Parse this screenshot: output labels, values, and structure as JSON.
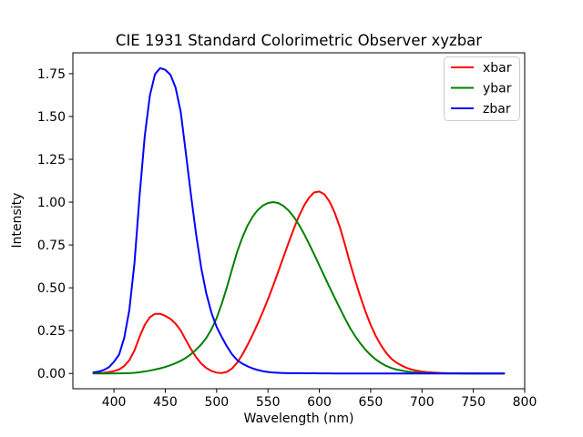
{
  "figure": {
    "background": "#ffffff",
    "axes_color": "#000000",
    "legend_border_color": "#cccccc",
    "legend_background": "#ffffff"
  },
  "chart_data": {
    "type": "line",
    "title": "CIE 1931 Standard Colorimetric Observer xyzbar",
    "xlabel": "Wavelength (nm)",
    "ylabel": "Intensity",
    "xlim": [
      360,
      800
    ],
    "ylim": [
      -0.0891,
      1.8717
    ],
    "grid": false,
    "xticks": {
      "values": [
        400,
        450,
        500,
        550,
        600,
        650,
        700,
        750,
        800
      ],
      "labels": [
        "400",
        "450",
        "500",
        "550",
        "600",
        "650",
        "700",
        "750",
        "800"
      ]
    },
    "yticks": {
      "values": [
        0.0,
        0.25,
        0.5,
        0.75,
        1.0,
        1.25,
        1.5,
        1.75
      ],
      "labels": [
        "0.00",
        "0.25",
        "0.50",
        "0.75",
        "1.00",
        "1.25",
        "1.50",
        "1.75"
      ]
    },
    "legend": {
      "position": "upper right",
      "entries": [
        {
          "label": "xbar",
          "color": "#ff0000"
        },
        {
          "label": "ybar",
          "color": "#008000"
        },
        {
          "label": "zbar",
          "color": "#0000ff"
        }
      ]
    },
    "x": [
      380,
      385,
      390,
      395,
      400,
      405,
      410,
      415,
      420,
      425,
      430,
      435,
      440,
      445,
      450,
      455,
      460,
      465,
      470,
      475,
      480,
      485,
      490,
      495,
      500,
      505,
      510,
      515,
      520,
      525,
      530,
      535,
      540,
      545,
      550,
      555,
      560,
      565,
      570,
      575,
      580,
      585,
      590,
      595,
      600,
      605,
      610,
      615,
      620,
      625,
      630,
      635,
      640,
      645,
      650,
      655,
      660,
      665,
      670,
      675,
      680,
      685,
      690,
      695,
      700,
      705,
      710,
      715,
      720,
      725,
      730,
      735,
      740,
      745,
      750,
      755,
      760,
      765,
      770,
      775,
      780
    ],
    "series": [
      {
        "name": "xbar",
        "color": "#ff0000",
        "values": [
          0.0014,
          0.0022,
          0.0042,
          0.0076,
          0.0143,
          0.0232,
          0.0435,
          0.0776,
          0.1344,
          0.2148,
          0.2839,
          0.3285,
          0.3483,
          0.3481,
          0.3362,
          0.3187,
          0.2908,
          0.2511,
          0.1954,
          0.1421,
          0.0956,
          0.058,
          0.032,
          0.0147,
          0.0049,
          0.0024,
          0.0093,
          0.0291,
          0.0633,
          0.1096,
          0.1655,
          0.2257,
          0.2904,
          0.3597,
          0.4334,
          0.5121,
          0.5945,
          0.6784,
          0.7621,
          0.8425,
          0.9163,
          0.9786,
          1.0263,
          1.0567,
          1.0622,
          1.0456,
          1.0026,
          0.9384,
          0.8544,
          0.7514,
          0.6424,
          0.5419,
          0.4479,
          0.3608,
          0.2835,
          0.2187,
          0.1649,
          0.1212,
          0.0874,
          0.0636,
          0.0468,
          0.0329,
          0.0227,
          0.0158,
          0.0114,
          0.0081,
          0.0058,
          0.0041,
          0.0029,
          0.002,
          0.0014,
          0.001,
          0.0007,
          0.0005,
          0.0003,
          0.0002,
          0.0002,
          0.0001,
          0.0001,
          0.0001,
          0.0
        ]
      },
      {
        "name": "ybar",
        "color": "#008000",
        "values": [
          0.0,
          0.0001,
          0.0001,
          0.0002,
          0.0004,
          0.0006,
          0.0012,
          0.0022,
          0.004,
          0.0073,
          0.0116,
          0.0168,
          0.023,
          0.0298,
          0.038,
          0.048,
          0.06,
          0.0739,
          0.091,
          0.1126,
          0.139,
          0.1693,
          0.208,
          0.2586,
          0.323,
          0.4073,
          0.503,
          0.6082,
          0.71,
          0.7932,
          0.862,
          0.9149,
          0.954,
          0.9803,
          0.995,
          1.0,
          0.995,
          0.9786,
          0.952,
          0.9154,
          0.87,
          0.8163,
          0.757,
          0.6949,
          0.631,
          0.5668,
          0.503,
          0.4412,
          0.381,
          0.321,
          0.265,
          0.217,
          0.175,
          0.1382,
          0.107,
          0.0816,
          0.061,
          0.0446,
          0.032,
          0.0232,
          0.017,
          0.0119,
          0.0082,
          0.0057,
          0.0041,
          0.0029,
          0.0021,
          0.0015,
          0.001,
          0.0007,
          0.0005,
          0.0004,
          0.0002,
          0.0002,
          0.0001,
          0.0001,
          0.0001,
          0.0,
          0.0,
          0.0,
          0.0
        ]
      },
      {
        "name": "zbar",
        "color": "#0000ff",
        "values": [
          0.0065,
          0.0105,
          0.0201,
          0.0362,
          0.0679,
          0.1102,
          0.2074,
          0.3713,
          0.6456,
          1.0391,
          1.3856,
          1.623,
          1.7471,
          1.7826,
          1.7721,
          1.7441,
          1.6692,
          1.5281,
          1.2876,
          1.0419,
          0.813,
          0.6162,
          0.4652,
          0.3533,
          0.272,
          0.2123,
          0.1582,
          0.1117,
          0.0782,
          0.0573,
          0.0422,
          0.0298,
          0.0203,
          0.0134,
          0.0087,
          0.0057,
          0.0039,
          0.0027,
          0.0021,
          0.0018,
          0.0017,
          0.0014,
          0.0011,
          0.001,
          0.0008,
          0.0006,
          0.0003,
          0.0002,
          0.0002,
          0.0001,
          0.0,
          0.0,
          0.0,
          0.0,
          0.0,
          0.0,
          0.0,
          0.0,
          0.0,
          0.0,
          0.0,
          0.0,
          0.0,
          0.0,
          0.0,
          0.0,
          0.0,
          0.0,
          0.0,
          0.0,
          0.0,
          0.0,
          0.0,
          0.0,
          0.0,
          0.0,
          0.0,
          0.0,
          0.0,
          0.0,
          0.0
        ]
      }
    ]
  }
}
